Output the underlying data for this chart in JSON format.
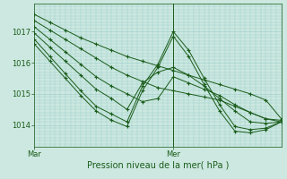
{
  "title": "",
  "xlabel": "Pression niveau de la mer( hPa )",
  "background_color": "#cce8e0",
  "grid_color": "#99cccc",
  "line_color": "#1a5c1a",
  "marker_color": "#1a5c1a",
  "axis_color": "#1a5c1a",
  "text_color": "#1a5c1a",
  "xlim": [
    0,
    48
  ],
  "ylim": [
    1013.3,
    1017.9
  ],
  "yticks": [
    1014,
    1015,
    1016,
    1017
  ],
  "xtick_labels": [
    [
      "Mar",
      0
    ],
    [
      "Mer",
      27
    ]
  ],
  "ver_line_x": 27,
  "series": [
    {
      "x": [
        0,
        3,
        6,
        9,
        12,
        15,
        18,
        21,
        24,
        27,
        30,
        33,
        36,
        39,
        42,
        45,
        48
      ],
      "y": [
        1017.55,
        1017.3,
        1017.05,
        1016.8,
        1016.6,
        1016.4,
        1016.2,
        1016.05,
        1015.9,
        1015.75,
        1015.6,
        1015.45,
        1015.3,
        1015.15,
        1015.0,
        1014.8,
        1014.2
      ]
    },
    {
      "x": [
        0,
        3,
        6,
        9,
        12,
        15,
        18,
        21,
        24,
        27,
        30,
        33,
        36,
        39,
        42,
        45,
        48
      ],
      "y": [
        1017.35,
        1017.05,
        1016.75,
        1016.45,
        1016.15,
        1015.85,
        1015.6,
        1015.4,
        1015.2,
        1015.1,
        1015.0,
        1014.9,
        1014.8,
        1014.6,
        1014.4,
        1014.2,
        1014.15
      ]
    },
    {
      "x": [
        0,
        3,
        6,
        9,
        12,
        15,
        18,
        21,
        24,
        27,
        30,
        33,
        36,
        39,
        42,
        45,
        48
      ],
      "y": [
        1017.15,
        1016.75,
        1016.35,
        1015.95,
        1015.55,
        1015.25,
        1015.0,
        1014.75,
        1014.85,
        1015.55,
        1015.35,
        1015.15,
        1014.95,
        1014.65,
        1014.4,
        1014.2,
        1014.1
      ]
    },
    {
      "x": [
        0,
        3,
        6,
        9,
        12,
        15,
        18,
        21,
        24,
        27,
        30,
        33,
        36,
        39,
        42,
        45,
        48
      ],
      "y": [
        1016.95,
        1016.5,
        1016.05,
        1015.6,
        1015.15,
        1014.85,
        1014.5,
        1015.35,
        1015.7,
        1015.85,
        1015.6,
        1015.25,
        1014.85,
        1014.45,
        1014.1,
        1014.05,
        1014.1
      ]
    },
    {
      "x": [
        0,
        3,
        6,
        9,
        12,
        15,
        18,
        21,
        24,
        27,
        30,
        33,
        36,
        39,
        42,
        45,
        48
      ],
      "y": [
        1016.75,
        1016.2,
        1015.65,
        1015.1,
        1014.6,
        1014.35,
        1014.1,
        1015.25,
        1015.95,
        1017.0,
        1016.4,
        1015.5,
        1014.65,
        1013.95,
        1013.85,
        1013.9,
        1014.1
      ]
    },
    {
      "x": [
        0,
        3,
        6,
        9,
        12,
        15,
        18,
        21,
        24,
        27,
        30,
        33,
        36,
        39,
        42,
        45,
        48
      ],
      "y": [
        1016.6,
        1016.05,
        1015.5,
        1014.95,
        1014.45,
        1014.15,
        1013.95,
        1015.1,
        1015.85,
        1016.85,
        1016.2,
        1015.3,
        1014.45,
        1013.8,
        1013.75,
        1013.85,
        1014.1
      ]
    }
  ]
}
